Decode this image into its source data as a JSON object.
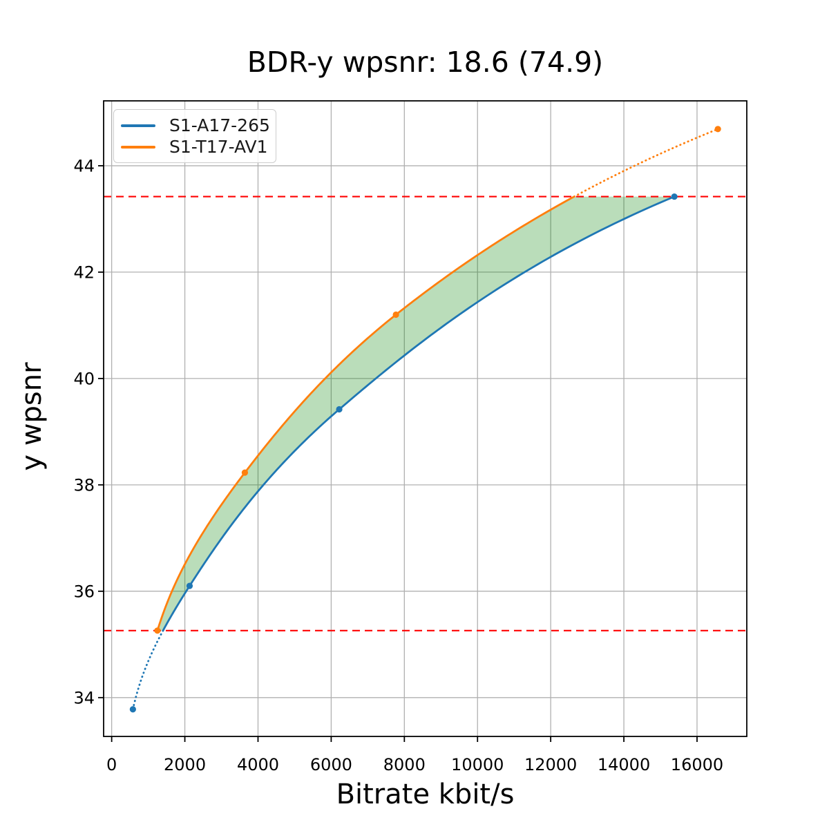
{
  "page": {
    "title": "BDR-y wpsnr: 18.6 (74.9)"
  },
  "chart_data": {
    "type": "line",
    "title": "BDR-y wpsnr: 18.6 (74.9)",
    "xlabel": "Bitrate kbit/s",
    "ylabel": "y wpsnr",
    "xlim": [
      -220,
      17360
    ],
    "ylim": [
      33.27,
      45.22
    ],
    "xticks": [
      0,
      2000,
      4000,
      6000,
      8000,
      10000,
      12000,
      14000,
      16000
    ],
    "yticks": [
      34,
      36,
      38,
      40,
      42,
      44
    ],
    "grid": true,
    "legend_position": "upper-left",
    "interpolation": "pchip-logx",
    "series": [
      {
        "name": "S1-A17-265",
        "color": "#1f77b4",
        "x": [
          580,
          2130,
          6220,
          15380
        ],
        "y": [
          33.78,
          36.1,
          39.42,
          43.42
        ]
      },
      {
        "name": "S1-T17-AV1",
        "color": "#ff7f0e",
        "x": [
          1250,
          3640,
          7770,
          16570
        ],
        "y": [
          35.26,
          38.23,
          41.2,
          44.69
        ]
      }
    ],
    "hlines": [
      {
        "y": 43.42,
        "color": "#ff0000",
        "style": "dashed"
      },
      {
        "y": 35.26,
        "color": "#ff0000",
        "style": "dashed"
      }
    ],
    "fill_between": {
      "color": "#008000",
      "alpha": 0.27,
      "y_range": [
        35.26,
        43.42
      ]
    }
  },
  "colors": {
    "grid": "#b0b0b0",
    "spine": "#000000",
    "tick_label": "#000000",
    "legend_border": "#cccccc"
  }
}
